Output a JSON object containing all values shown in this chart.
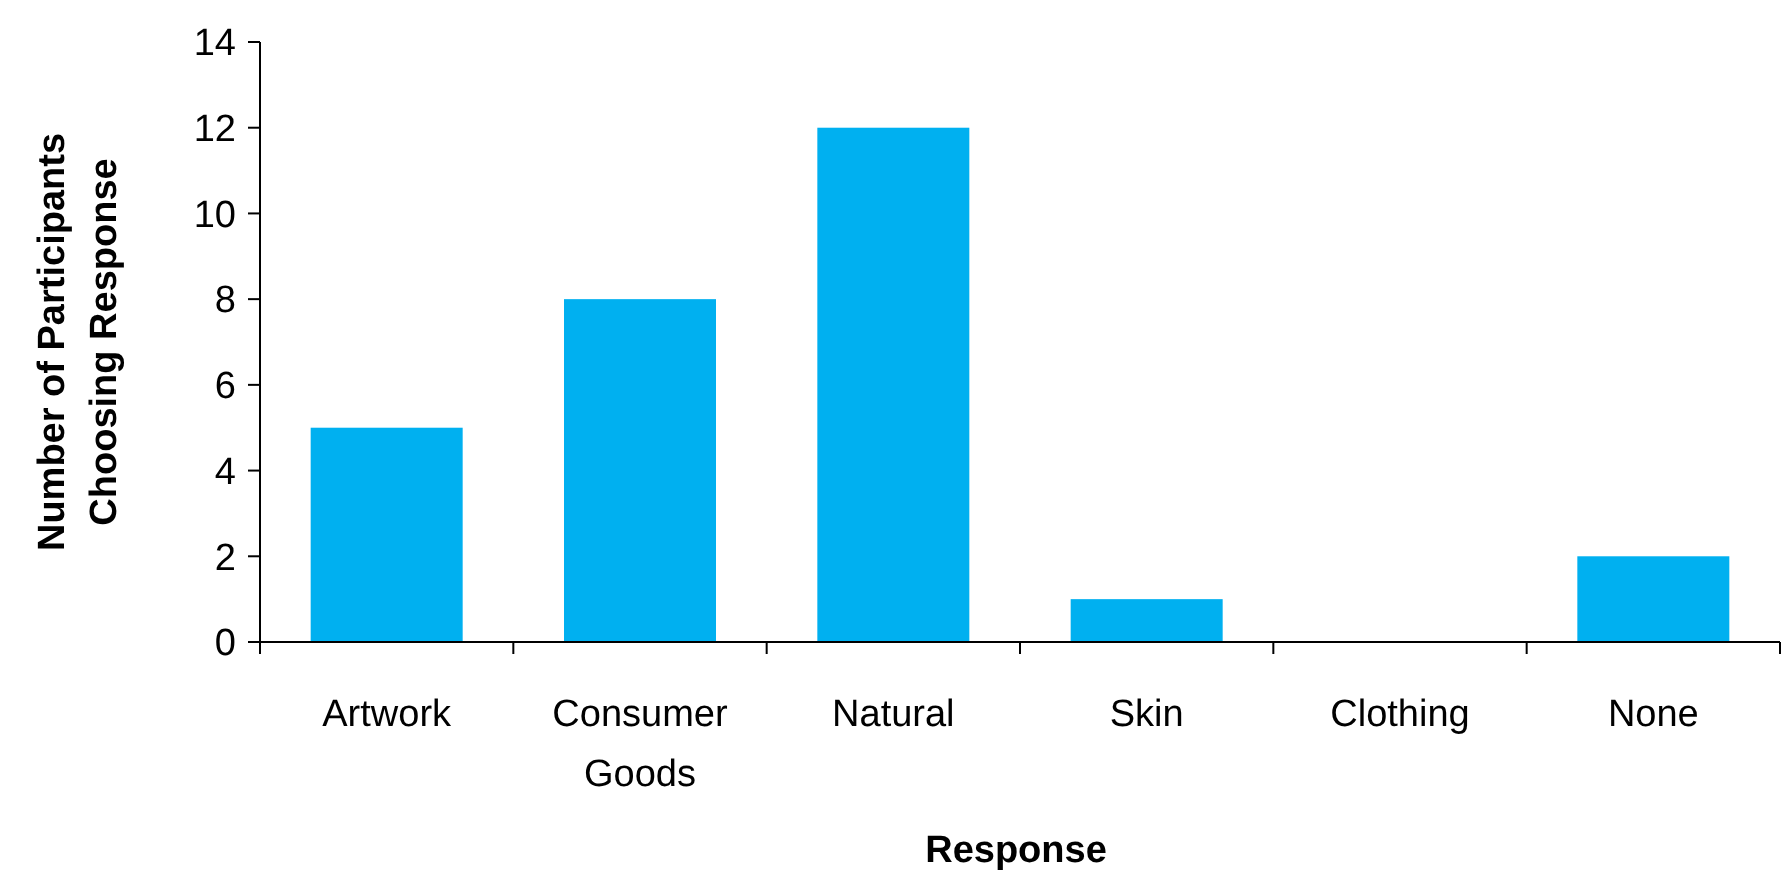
{
  "chart_data": {
    "type": "bar",
    "xlabel": "Response",
    "ylabel": "Number of Participants Choosing Response",
    "categories": [
      "Artwork",
      "Consumer Goods",
      "Natural",
      "Skin",
      "Clothing",
      "None"
    ],
    "values": [
      5,
      8,
      12,
      1,
      0,
      2
    ],
    "color": "#00b0f0",
    "ylim": [
      0,
      14
    ],
    "yticks": [
      0,
      2,
      4,
      6,
      8,
      10,
      12,
      14
    ],
    "grid": false
  }
}
